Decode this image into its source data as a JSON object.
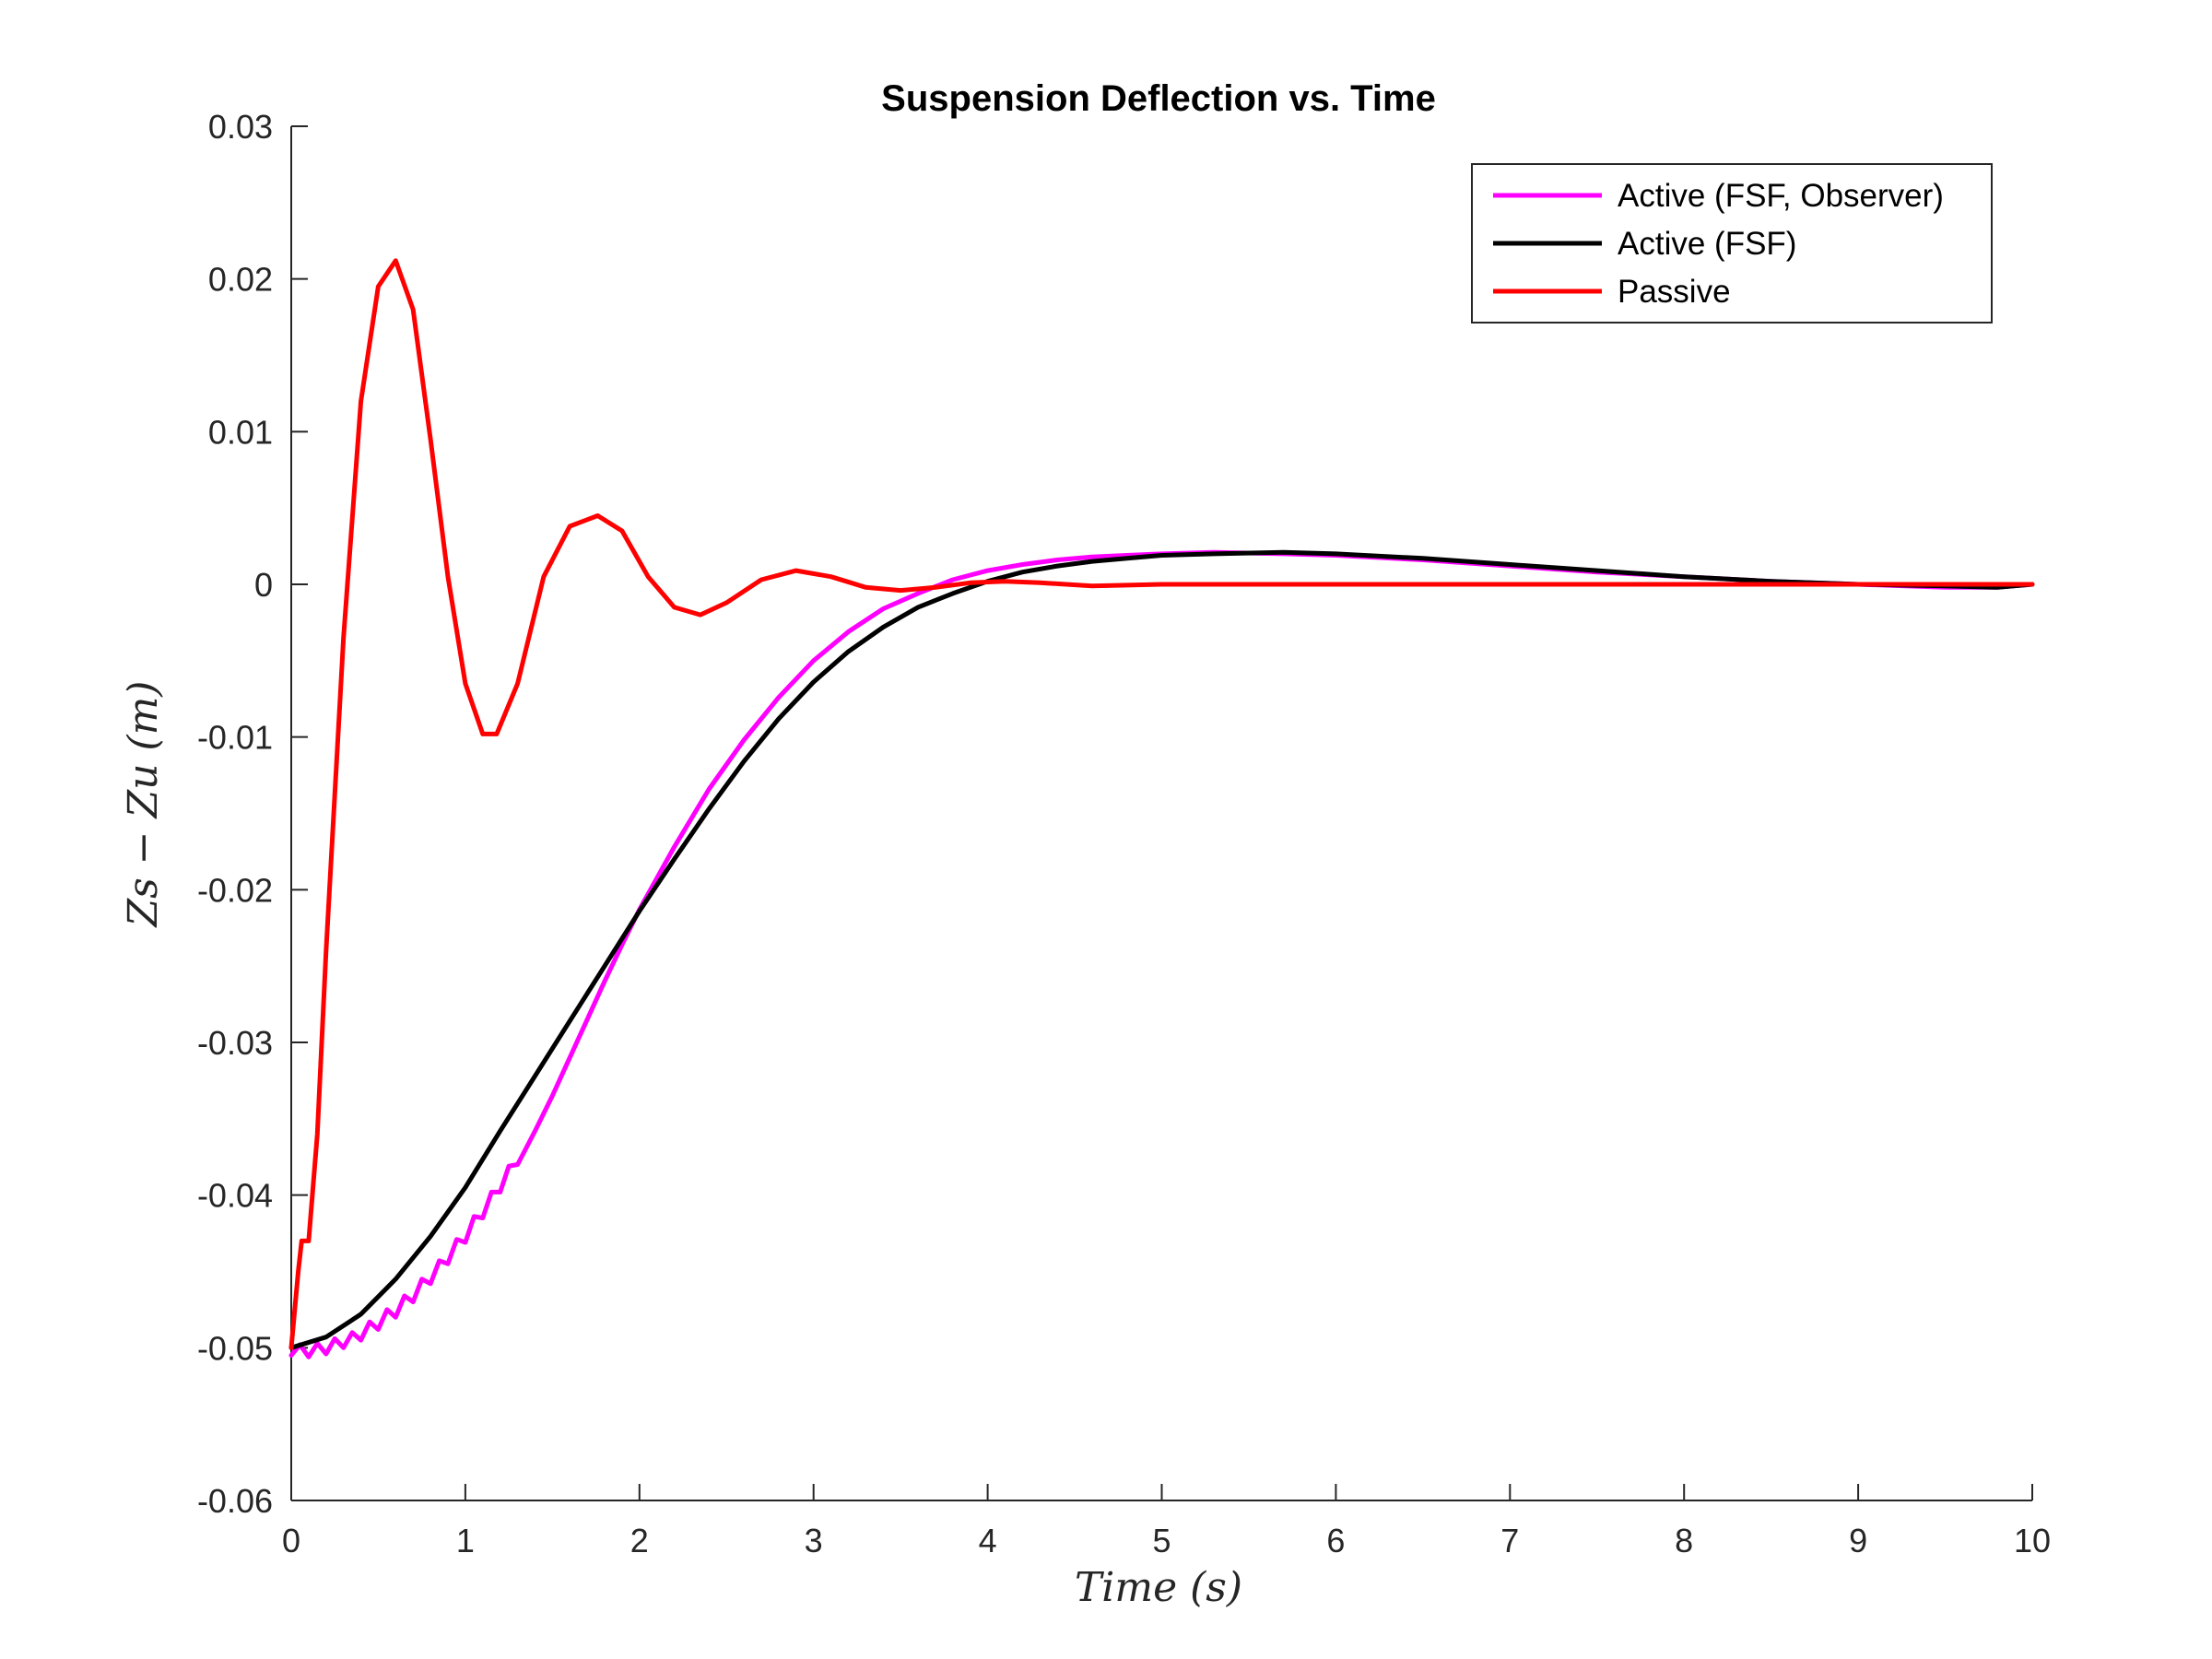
{
  "chart_data": {
    "type": "line",
    "title": "Suspension Deflection vs. Time",
    "xlabel": "Time (s)",
    "ylabel": "Zs − Zu (m)",
    "xlim": [
      0,
      10
    ],
    "ylim": [
      -0.06,
      0.03
    ],
    "xticks": [
      0,
      1,
      2,
      3,
      4,
      5,
      6,
      7,
      8,
      9,
      10
    ],
    "xtick_labels": [
      "0",
      "1",
      "2",
      "3",
      "4",
      "5",
      "6",
      "7",
      "8",
      "9",
      "10"
    ],
    "yticks": [
      0.03,
      0.02,
      0.01,
      0,
      -0.01,
      -0.02,
      -0.03,
      -0.04,
      -0.05,
      -0.06
    ],
    "ytick_labels": [
      "0.03",
      "0.02",
      "0.01",
      "0",
      "-0.01",
      "-0.02",
      "-0.03",
      "-0.04",
      "-0.05",
      "-0.06"
    ],
    "grid": false,
    "legend_position": "top-right",
    "series": [
      {
        "name": "Active (FSF, Observer)",
        "color": "#ff00ff",
        "x": [
          0,
          0.05,
          0.1,
          0.15,
          0.2,
          0.25,
          0.3,
          0.35,
          0.4,
          0.45,
          0.5,
          0.55,
          0.6,
          0.65,
          0.7,
          0.75,
          0.8,
          0.85,
          0.9,
          0.95,
          1.0,
          1.05,
          1.1,
          1.15,
          1.2,
          1.25,
          1.3,
          1.4,
          1.5,
          1.6,
          1.7,
          1.8,
          1.9,
          2.0,
          2.2,
          2.4,
          2.6,
          2.8,
          3.0,
          3.2,
          3.4,
          3.6,
          3.8,
          4.0,
          4.2,
          4.4,
          4.6,
          4.8,
          5.0,
          5.3,
          5.7,
          6.0,
          6.5,
          7.0,
          7.5,
          8.0,
          8.5,
          9.0,
          9.5,
          9.8,
          10.0
        ],
        "y": [
          -0.0505,
          -0.0498,
          -0.0506,
          -0.0497,
          -0.0504,
          -0.0494,
          -0.05,
          -0.049,
          -0.0495,
          -0.0483,
          -0.0488,
          -0.0475,
          -0.048,
          -0.0466,
          -0.047,
          -0.0455,
          -0.0458,
          -0.0443,
          -0.0445,
          -0.0429,
          -0.0431,
          -0.0414,
          -0.0415,
          -0.0398,
          -0.0398,
          -0.0381,
          -0.038,
          -0.0358,
          -0.0335,
          -0.031,
          -0.0285,
          -0.026,
          -0.0236,
          -0.0213,
          -0.0172,
          -0.0134,
          -0.0102,
          -0.0074,
          -0.005,
          -0.0031,
          -0.0016,
          -0.0006,
          0.0003,
          0.0009,
          0.0013,
          0.0016,
          0.0018,
          0.0019,
          0.002,
          0.0021,
          0.002,
          0.0019,
          0.0016,
          0.0012,
          0.0008,
          0.0005,
          0.0002,
          0.0,
          -0.0002,
          -0.0002,
          0.0
        ]
      },
      {
        "name": "Active (FSF)",
        "color": "#000000",
        "x": [
          0,
          0.2,
          0.4,
          0.6,
          0.8,
          1.0,
          1.2,
          1.4,
          1.6,
          1.8,
          2.0,
          2.2,
          2.4,
          2.6,
          2.8,
          3.0,
          3.2,
          3.4,
          3.6,
          3.8,
          4.0,
          4.2,
          4.4,
          4.6,
          4.8,
          5.0,
          5.3,
          5.7,
          6.0,
          6.5,
          7.0,
          7.5,
          8.0,
          8.5,
          9.0,
          9.5,
          9.8,
          10.0
        ],
        "y": [
          -0.05,
          -0.0493,
          -0.0478,
          -0.0455,
          -0.0427,
          -0.0395,
          -0.0358,
          -0.0322,
          -0.0286,
          -0.025,
          -0.0214,
          -0.018,
          -0.0147,
          -0.0116,
          -0.0088,
          -0.0064,
          -0.0044,
          -0.0028,
          -0.0015,
          -0.0006,
          0.0002,
          0.0008,
          0.0012,
          0.0015,
          0.0017,
          0.0019,
          0.002,
          0.0021,
          0.002,
          0.0017,
          0.0013,
          0.0009,
          0.0005,
          0.0002,
          0.0,
          -0.0001,
          -0.0002,
          0.0
        ]
      },
      {
        "name": "Passive",
        "color": "#ff0000",
        "x": [
          0,
          0.04,
          0.06,
          0.1,
          0.15,
          0.2,
          0.3,
          0.4,
          0.5,
          0.6,
          0.7,
          0.8,
          0.9,
          1.0,
          1.1,
          1.18,
          1.3,
          1.45,
          1.6,
          1.76,
          1.9,
          2.05,
          2.2,
          2.35,
          2.5,
          2.7,
          2.9,
          3.1,
          3.3,
          3.5,
          3.7,
          3.9,
          4.1,
          4.3,
          4.6,
          5.0,
          5.5,
          6.0,
          7.0,
          8.0,
          9.0,
          10.0
        ],
        "y": [
          -0.05,
          -0.045,
          -0.043,
          -0.043,
          -0.036,
          -0.024,
          -0.0035,
          0.012,
          0.0195,
          0.0212,
          0.018,
          0.0095,
          0.0005,
          -0.0065,
          -0.0098,
          -0.0098,
          -0.0065,
          0.0005,
          0.0038,
          0.0045,
          0.0035,
          0.0005,
          -0.0015,
          -0.002,
          -0.0012,
          0.0003,
          0.0009,
          0.0005,
          -0.0002,
          -0.0004,
          -0.0002,
          0.0001,
          0.0002,
          0.0001,
          -0.0001,
          0.0,
          0.0,
          0.0,
          0.0,
          0.0,
          0.0,
          0.0
        ]
      }
    ]
  }
}
